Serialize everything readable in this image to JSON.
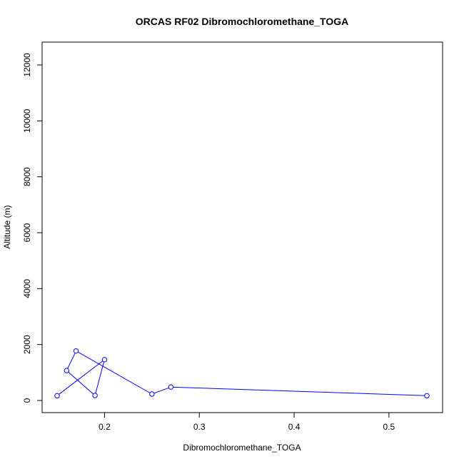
{
  "chart_data": {
    "type": "line",
    "title": "ORCAS RF02 Dibromochloromethane_TOGA",
    "xlabel": "Dibromochloromethane_TOGA",
    "ylabel": "Altitude (m)",
    "xlim": [
      0.15,
      0.54
    ],
    "ylim": [
      0,
      12800
    ],
    "x_ticks": [
      0.2,
      0.3,
      0.4,
      0.5
    ],
    "x_tick_labels": [
      "0.2",
      "0.3",
      "0.4",
      "0.5"
    ],
    "y_ticks": [
      0,
      2000,
      4000,
      6000,
      8000,
      10000,
      12000
    ],
    "y_tick_labels": [
      "0",
      "2000",
      "4000",
      "6000",
      "8000",
      "10000",
      "12000"
    ],
    "grid": false,
    "legend": "none",
    "series": [
      {
        "color": "#0000ff",
        "marker": "open-circle",
        "x": [
          0.54,
          0.27,
          0.25,
          0.17,
          0.16,
          0.19,
          0.2,
          0.15
        ],
        "y": [
          170,
          480,
          230,
          1770,
          1070,
          180,
          1460,
          170
        ]
      }
    ]
  }
}
